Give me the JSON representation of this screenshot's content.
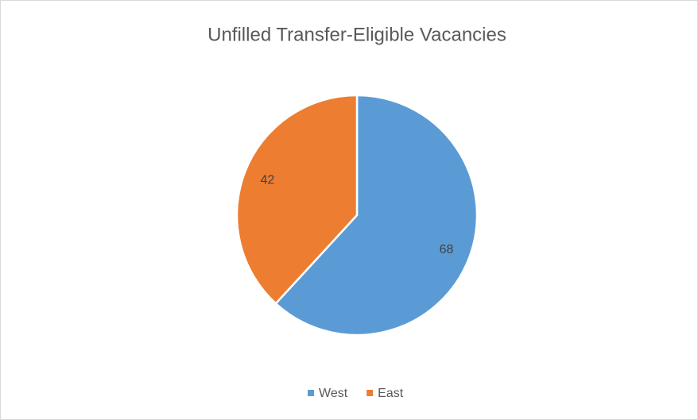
{
  "chart_data": {
    "type": "pie",
    "title": "Unfilled Transfer-Eligible Vacancies",
    "categories": [
      "West",
      "East"
    ],
    "values": [
      68,
      42
    ],
    "colors": [
      "#5b9bd5",
      "#ed7d31"
    ],
    "legend": "bottom"
  }
}
